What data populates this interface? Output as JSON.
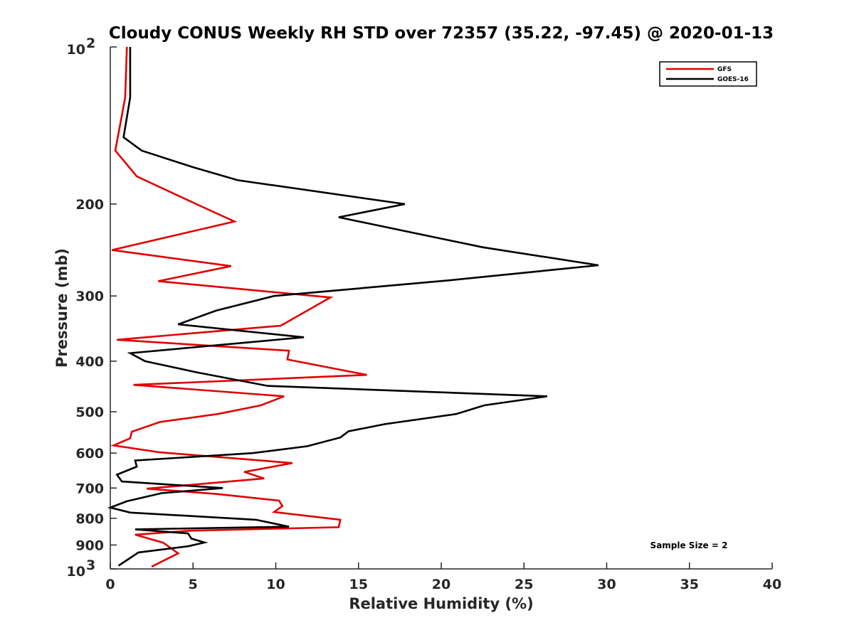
{
  "chart_data": {
    "type": "line",
    "title": "Cloudy CONUS Weekly RH STD over 72357 (35.22, -97.45) @ 2020-01-13",
    "xlabel": "Relative Humidity (%)",
    "ylabel": "Pressure (mb)",
    "xlim": [
      0,
      40
    ],
    "ylim": [
      1000,
      100
    ],
    "yscale": "log",
    "y_reversed": true,
    "x_ticks": [
      "0",
      "5",
      "10",
      "15",
      "20",
      "25",
      "30",
      "35",
      "40"
    ],
    "y_ticks": [
      {
        "value": 100,
        "base": "10",
        "exp": "2"
      },
      {
        "value": 200,
        "label": "200"
      },
      {
        "value": 300,
        "label": "300"
      },
      {
        "value": 400,
        "label": "400"
      },
      {
        "value": 500,
        "label": "500"
      },
      {
        "value": 600,
        "label": "600"
      },
      {
        "value": 700,
        "label": "700"
      },
      {
        "value": 800,
        "label": "800"
      },
      {
        "value": 900,
        "label": "900"
      },
      {
        "value": 1000,
        "base": "10",
        "exp": "3"
      }
    ],
    "legend_position": "top-right",
    "annotation": "Sample Size = 2",
    "series": [
      {
        "name": "GFS",
        "color": "#e00000",
        "points": [
          [
            1.0,
            100
          ],
          [
            0.9,
            125
          ],
          [
            0.3,
            158
          ],
          [
            1.6,
            177
          ],
          [
            5.2,
            200
          ],
          [
            7.5,
            216
          ],
          [
            0.1,
            245
          ],
          [
            7.3,
            263
          ],
          [
            2.9,
            281
          ],
          [
            13.3,
            302
          ],
          [
            10.3,
            342
          ],
          [
            0.4,
            364
          ],
          [
            10.8,
            382
          ],
          [
            10.7,
            397
          ],
          [
            15.5,
            425
          ],
          [
            1.4,
            444
          ],
          [
            10.5,
            467
          ],
          [
            9.1,
            486
          ],
          [
            6.5,
            505
          ],
          [
            3.0,
            523
          ],
          [
            1.3,
            546
          ],
          [
            1.2,
            562
          ],
          [
            0.2,
            580
          ],
          [
            3.0,
            598
          ],
          [
            11.0,
            627
          ],
          [
            8.1,
            652
          ],
          [
            9.3,
            671
          ],
          [
            2.2,
            702
          ],
          [
            6.5,
            719
          ],
          [
            10.2,
            740
          ],
          [
            10.4,
            758
          ],
          [
            9.9,
            778
          ],
          [
            13.9,
            805
          ],
          [
            13.8,
            832
          ],
          [
            4.8,
            845
          ],
          [
            1.5,
            860
          ],
          [
            3.2,
            891
          ],
          [
            4.1,
            934
          ],
          [
            2.5,
            990
          ]
        ]
      },
      {
        "name": "GOES-16",
        "color": "#000000",
        "points": [
          [
            1.2,
            100
          ],
          [
            1.2,
            125
          ],
          [
            0.8,
            149
          ],
          [
            1.9,
            158
          ],
          [
            5.0,
            170
          ],
          [
            7.7,
            180
          ],
          [
            17.8,
            200
          ],
          [
            13.8,
            212
          ],
          [
            22.5,
            242
          ],
          [
            29.5,
            262
          ],
          [
            20.5,
            280
          ],
          [
            9.9,
            300
          ],
          [
            6.4,
            320
          ],
          [
            4.1,
            340
          ],
          [
            11.7,
            360
          ],
          [
            1.2,
            386
          ],
          [
            2.1,
            400
          ],
          [
            5.2,
            420
          ],
          [
            9.5,
            446
          ],
          [
            26.4,
            467
          ],
          [
            22.6,
            486
          ],
          [
            20.9,
            505
          ],
          [
            16.6,
            528
          ],
          [
            14.4,
            545
          ],
          [
            13.9,
            560
          ],
          [
            11.9,
            582
          ],
          [
            8.6,
            600
          ],
          [
            1.5,
            620
          ],
          [
            1.6,
            637
          ],
          [
            0.4,
            660
          ],
          [
            0.7,
            680
          ],
          [
            6.8,
            700
          ],
          [
            3.1,
            716
          ],
          [
            1.0,
            742
          ],
          [
            0.0,
            763
          ],
          [
            1.2,
            780
          ],
          [
            8.8,
            805
          ],
          [
            10.8,
            830
          ],
          [
            1.5,
            840
          ],
          [
            4.7,
            855
          ],
          [
            4.9,
            875
          ],
          [
            5.7,
            890
          ],
          [
            4.7,
            905
          ],
          [
            1.7,
            930
          ],
          [
            0.5,
            986
          ]
        ]
      }
    ]
  }
}
